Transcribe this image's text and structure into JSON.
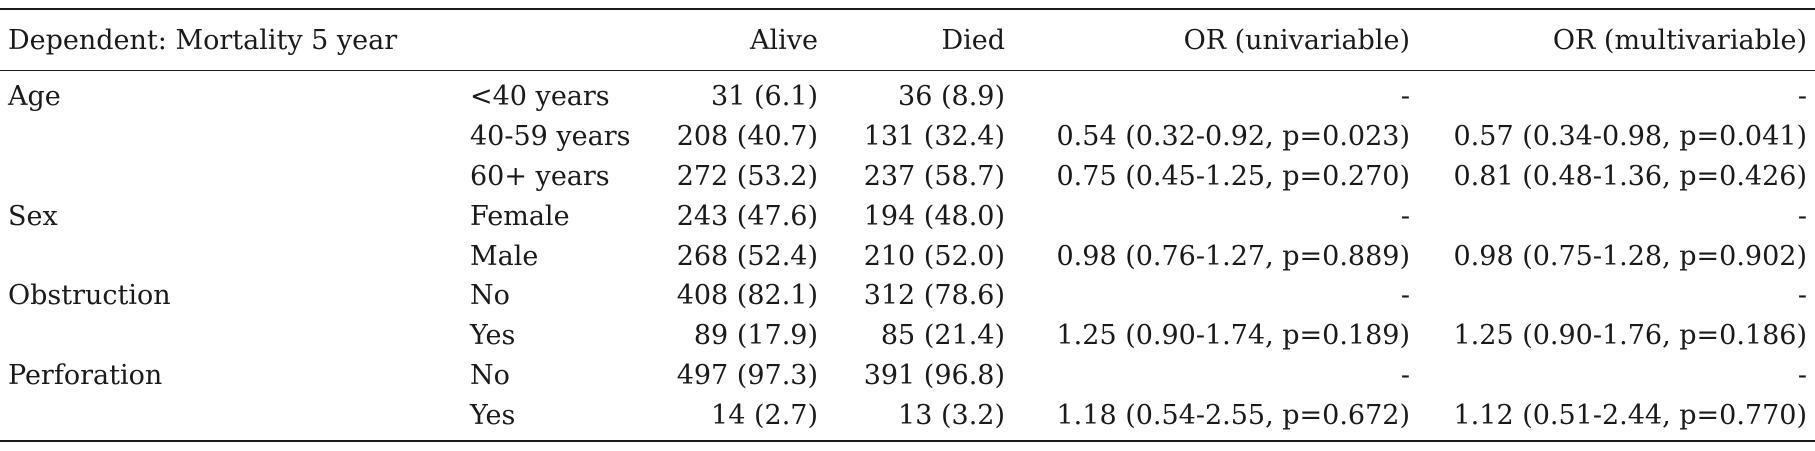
{
  "table": {
    "headers": [
      "Dependent: Mortality 5 year",
      "",
      "Alive",
      "Died",
      "OR (univariable)",
      "OR (multivariable)"
    ],
    "rows": [
      [
        "Age",
        "<40 years",
        "31 (6.1)",
        "36 (8.9)",
        "-",
        "-"
      ],
      [
        "",
        "40-59 years",
        "208 (40.7)",
        "131 (32.4)",
        "0.54 (0.32-0.92, p=0.023)",
        "0.57 (0.34-0.98, p=0.041)"
      ],
      [
        "",
        "60+ years",
        "272 (53.2)",
        "237 (58.7)",
        "0.75 (0.45-1.25, p=0.270)",
        "0.81 (0.48-1.36, p=0.426)"
      ],
      [
        "Sex",
        "Female",
        "243 (47.6)",
        "194 (48.0)",
        "-",
        "-"
      ],
      [
        "",
        "Male",
        "268 (52.4)",
        "210 (52.0)",
        "0.98 (0.76-1.27, p=0.889)",
        "0.98 (0.75-1.28, p=0.902)"
      ],
      [
        "Obstruction",
        "No",
        "408 (82.1)",
        "312 (78.6)",
        "-",
        "-"
      ],
      [
        "",
        "Yes",
        "89 (17.9)",
        "85 (21.4)",
        "1.25 (0.90-1.74, p=0.189)",
        "1.25 (0.90-1.76, p=0.186)"
      ],
      [
        "Perforation",
        "No",
        "497 (97.3)",
        "391 (96.8)",
        "-",
        "-"
      ],
      [
        "",
        "Yes",
        "14 (2.7)",
        "13 (3.2)",
        "1.18 (0.54-2.55, p=0.672)",
        "1.12 (0.51-2.44, p=0.770)"
      ]
    ]
  }
}
